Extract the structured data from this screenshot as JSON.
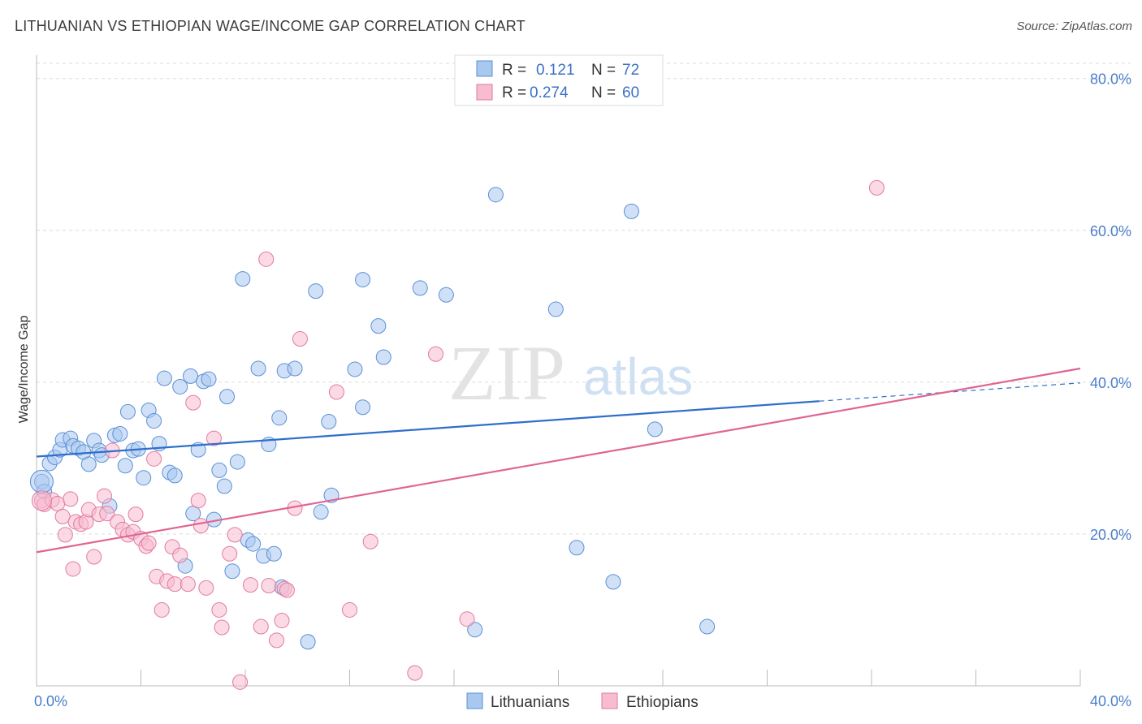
{
  "header": {
    "title": "LITHUANIAN VS ETHIOPIAN WAGE/INCOME GAP CORRELATION CHART",
    "source": "Source: ZipAtlas.com"
  },
  "watermark": {
    "zip": "ZIP",
    "atlas": "atlas"
  },
  "legend_top": [
    {
      "r_label": "R =",
      "r_value": "0.121",
      "n_label": "N =",
      "n_value": "72",
      "color": "#a9c8f0",
      "stroke": "#5b8fd6"
    },
    {
      "r_label": "R =",
      "r_value": "0.274",
      "n_label": "N =",
      "n_value": "60",
      "color": "#f7bcd0",
      "stroke": "#e27aa0"
    }
  ],
  "legend_bottom": [
    "Lithuanians",
    "Ethiopians"
  ],
  "chart_data": {
    "type": "scatter",
    "title": "LITHUANIAN VS ETHIOPIAN WAGE/INCOME GAP CORRELATION CHART",
    "xlabel": "",
    "ylabel": "Wage/Income Gap",
    "xlim": [
      0,
      40
    ],
    "ylim": [
      0,
      82
    ],
    "x_tick_labels": [
      {
        "value": 0,
        "label": "0.0%"
      },
      {
        "value": 40,
        "label": "40.0%"
      }
    ],
    "y_tick_labels": [
      {
        "value": 20,
        "label": "20.0%"
      },
      {
        "value": 40,
        "label": "40.0%"
      },
      {
        "value": 60,
        "label": "60.0%"
      },
      {
        "value": 80,
        "label": "80.0%"
      }
    ],
    "grid": true,
    "legend_position": "top-center and bottom",
    "series": [
      {
        "name": "Lithuanians",
        "color": "#a9c8f0",
        "stroke": "#5b8fd6",
        "trend": {
          "x0": 0,
          "y0": 30.2,
          "x1": 30,
          "y1": 37.5,
          "dash_to_x": 40,
          "dash_to_y": 39.9,
          "color": "#2f6fcc"
        },
        "points": [
          [
            0.2,
            26.9
          ],
          [
            0.3,
            25.6
          ],
          [
            0.5,
            29.3
          ],
          [
            0.7,
            30.1
          ],
          [
            0.9,
            31.1
          ],
          [
            1.0,
            32.4
          ],
          [
            1.3,
            32.6
          ],
          [
            1.4,
            31.6
          ],
          [
            1.6,
            31.3
          ],
          [
            1.8,
            30.8
          ],
          [
            2.0,
            29.2
          ],
          [
            2.2,
            32.3
          ],
          [
            2.4,
            31.0
          ],
          [
            2.5,
            30.4
          ],
          [
            2.8,
            23.7
          ],
          [
            3.0,
            33.0
          ],
          [
            3.2,
            33.2
          ],
          [
            3.4,
            29.0
          ],
          [
            3.5,
            36.1
          ],
          [
            3.7,
            31.0
          ],
          [
            3.9,
            31.2
          ],
          [
            4.1,
            27.4
          ],
          [
            4.3,
            36.3
          ],
          [
            4.5,
            34.9
          ],
          [
            4.7,
            31.9
          ],
          [
            4.9,
            40.5
          ],
          [
            5.1,
            28.1
          ],
          [
            5.3,
            27.7
          ],
          [
            5.5,
            39.4
          ],
          [
            5.7,
            15.8
          ],
          [
            5.9,
            40.8
          ],
          [
            6.0,
            22.7
          ],
          [
            6.2,
            31.1
          ],
          [
            6.4,
            40.1
          ],
          [
            6.6,
            40.4
          ],
          [
            6.8,
            21.9
          ],
          [
            7.0,
            28.4
          ],
          [
            7.2,
            26.3
          ],
          [
            7.3,
            38.1
          ],
          [
            7.5,
            15.1
          ],
          [
            7.7,
            29.5
          ],
          [
            7.9,
            53.6
          ],
          [
            8.1,
            19.2
          ],
          [
            8.3,
            18.7
          ],
          [
            8.5,
            41.8
          ],
          [
            8.7,
            17.1
          ],
          [
            8.9,
            31.8
          ],
          [
            9.1,
            17.4
          ],
          [
            9.3,
            35.3
          ],
          [
            9.4,
            13.0
          ],
          [
            9.5,
            41.5
          ],
          [
            9.9,
            41.8
          ],
          [
            10.7,
            52.0
          ],
          [
            10.4,
            5.8
          ],
          [
            10.9,
            22.9
          ],
          [
            11.2,
            34.8
          ],
          [
            11.3,
            25.1
          ],
          [
            12.2,
            41.7
          ],
          [
            12.5,
            36.7
          ],
          [
            12.5,
            53.5
          ],
          [
            13.1,
            47.4
          ],
          [
            13.3,
            43.3
          ],
          [
            14.7,
            52.4
          ],
          [
            15.7,
            51.5
          ],
          [
            16.8,
            7.4
          ],
          [
            17.6,
            64.7
          ],
          [
            19.9,
            49.6
          ],
          [
            20.7,
            18.2
          ],
          [
            22.1,
            13.7
          ],
          [
            22.8,
            62.5
          ],
          [
            23.7,
            33.8
          ],
          [
            25.7,
            7.8
          ]
        ]
      },
      {
        "name": "Ethiopians",
        "color": "#f7bcd0",
        "stroke": "#e27aa0",
        "trend": {
          "x0": 0,
          "y0": 17.6,
          "x1": 40,
          "y1": 41.8,
          "color": "#e06592"
        },
        "points": [
          [
            0.2,
            24.4
          ],
          [
            0.3,
            23.9
          ],
          [
            0.6,
            24.5
          ],
          [
            0.8,
            24.0
          ],
          [
            1.0,
            22.3
          ],
          [
            1.1,
            19.9
          ],
          [
            1.3,
            24.6
          ],
          [
            1.4,
            15.4
          ],
          [
            1.5,
            21.6
          ],
          [
            1.7,
            21.3
          ],
          [
            1.9,
            21.6
          ],
          [
            2.0,
            23.2
          ],
          [
            2.2,
            17.0
          ],
          [
            2.4,
            22.6
          ],
          [
            2.6,
            25.0
          ],
          [
            2.7,
            22.7
          ],
          [
            2.9,
            31.0
          ],
          [
            3.1,
            21.6
          ],
          [
            3.3,
            20.6
          ],
          [
            3.5,
            19.9
          ],
          [
            3.7,
            20.3
          ],
          [
            3.8,
            22.6
          ],
          [
            4.0,
            19.4
          ],
          [
            4.2,
            18.4
          ],
          [
            4.3,
            18.8
          ],
          [
            4.5,
            29.9
          ],
          [
            4.6,
            14.4
          ],
          [
            4.8,
            10.0
          ],
          [
            5.0,
            13.8
          ],
          [
            5.2,
            18.3
          ],
          [
            5.3,
            13.4
          ],
          [
            5.5,
            17.2
          ],
          [
            5.8,
            13.4
          ],
          [
            6.0,
            37.3
          ],
          [
            6.2,
            24.4
          ],
          [
            6.3,
            21.1
          ],
          [
            6.5,
            12.9
          ],
          [
            6.8,
            32.6
          ],
          [
            7.0,
            10.0
          ],
          [
            7.1,
            7.7
          ],
          [
            7.4,
            17.4
          ],
          [
            7.6,
            19.9
          ],
          [
            7.8,
            0.5
          ],
          [
            8.2,
            13.3
          ],
          [
            8.6,
            7.8
          ],
          [
            8.8,
            56.2
          ],
          [
            8.9,
            13.2
          ],
          [
            9.2,
            6.0
          ],
          [
            9.4,
            8.6
          ],
          [
            9.5,
            12.8
          ],
          [
            9.9,
            23.4
          ],
          [
            10.1,
            45.7
          ],
          [
            11.5,
            38.7
          ],
          [
            12.0,
            10.0
          ],
          [
            12.8,
            19.0
          ],
          [
            14.5,
            1.7
          ],
          [
            15.3,
            43.7
          ],
          [
            16.5,
            8.8
          ],
          [
            32.2,
            65.6
          ],
          [
            9.6,
            12.6
          ]
        ]
      }
    ]
  }
}
